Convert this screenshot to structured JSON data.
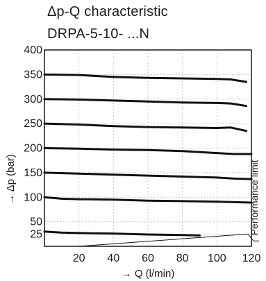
{
  "header": {
    "title_line1": "Δp-Q characteristic",
    "title_line2": "DRPA-5-10- ...N"
  },
  "chart_data": {
    "type": "line",
    "title": "Δp-Q characteristic DRPA-5-10- ...N",
    "xlabel": "→ Q (l/min)",
    "ylabel": "→ Δp (bar)",
    "xlim": [
      0,
      120
    ],
    "ylim": [
      0,
      400
    ],
    "x_ticks": [
      20,
      40,
      60,
      80,
      100,
      120
    ],
    "y_ticks": [
      25,
      50,
      100,
      150,
      200,
      250,
      300,
      350,
      400
    ],
    "grid": true,
    "series": [
      {
        "x": [
          0,
          20,
          40,
          60,
          80,
          100,
          108,
          117
        ],
        "y": [
          350,
          349,
          345,
          343,
          342,
          341,
          340,
          335
        ]
      },
      {
        "x": [
          0,
          20,
          40,
          60,
          80,
          100,
          108,
          117
        ],
        "y": [
          300,
          299,
          297,
          295,
          293,
          292,
          291,
          286
        ]
      },
      {
        "x": [
          0,
          20,
          40,
          60,
          80,
          100,
          108,
          117
        ],
        "y": [
          250,
          248,
          245,
          243,
          242,
          241,
          242,
          235
        ]
      },
      {
        "x": [
          0,
          20,
          40,
          60,
          80,
          100,
          110,
          120
        ],
        "y": [
          200,
          199,
          197,
          196,
          194,
          190,
          188,
          188
        ]
      },
      {
        "x": [
          0,
          20,
          40,
          60,
          80,
          100,
          110,
          120
        ],
        "y": [
          150,
          148,
          146,
          144,
          142,
          140,
          138,
          137
        ]
      },
      {
        "x": [
          0,
          10,
          20,
          40,
          60,
          80,
          100,
          120
        ],
        "y": [
          100,
          97,
          96,
          95,
          93,
          92,
          91,
          89
        ]
      },
      {
        "x": [
          0,
          10,
          20,
          40,
          60,
          80,
          90
        ],
        "y": [
          30,
          28,
          27,
          26,
          24,
          23,
          22
        ]
      }
    ],
    "limit_line": {
      "label": "Performance limit",
      "x": [
        20,
        118
      ],
      "y": [
        0,
        25
      ]
    }
  }
}
